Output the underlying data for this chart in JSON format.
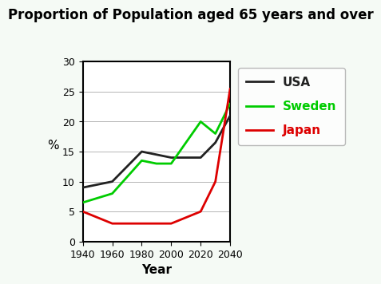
{
  "title": "Proportion of Population aged 65 years and over",
  "xlabel": "Year",
  "ylabel": "%",
  "years": [
    1940,
    1960,
    1980,
    1990,
    2000,
    2020,
    2030,
    2040
  ],
  "usa": [
    9,
    10,
    15,
    14.5,
    14,
    14,
    16.5,
    21
  ],
  "sweden": [
    6.5,
    8,
    13.5,
    13,
    13,
    20,
    18,
    23
  ],
  "japan": [
    5,
    3,
    3,
    3,
    3,
    5,
    10,
    25.5
  ],
  "usa_color": "#222222",
  "sweden_color": "#00cc00",
  "japan_color": "#dd0000",
  "ylim": [
    0,
    30
  ],
  "xlim": [
    1940,
    2040
  ],
  "xticks": [
    1940,
    1960,
    1980,
    2000,
    2020,
    2040
  ],
  "yticks": [
    0,
    5,
    10,
    15,
    20,
    25,
    30
  ],
  "bg_color": "#f5faf5",
  "plot_bg": "#ffffff",
  "legend_labels": [
    "USA",
    "Sweden",
    "Japan"
  ],
  "legend_colors": [
    "#222222",
    "#00cc00",
    "#dd0000"
  ],
  "title_fontsize": 12,
  "axis_label_fontsize": 11,
  "tick_fontsize": 9,
  "legend_fontsize": 11,
  "linewidth": 2.0
}
